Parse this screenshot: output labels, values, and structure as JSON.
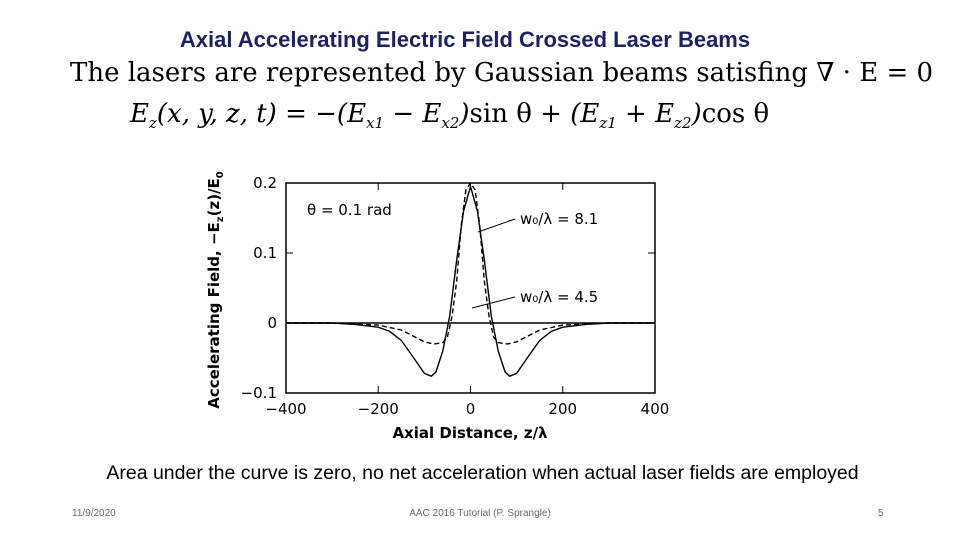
{
  "slide": {
    "title": "Axial Accelerating Electric Field Crossed Laser Beams",
    "intro_text": "The lasers are represented by Gaussian beams satisfing",
    "intro_math": "∇ · E = 0",
    "formula": {
      "lhs": "E",
      "lhs_sub": "z",
      "lhs_args": "(x, y, z, t)",
      "equals": "=",
      "t1_open": "−(E",
      "t1_sub1": "x1",
      "t1_minus": "− E",
      "t1_sub2": "x2",
      "t1_close": ")",
      "t1_fn": "sin θ",
      "plus": "+",
      "t2_open": "(E",
      "t2_sub1": "z1",
      "t2_plus": "+ E",
      "t2_sub2": "z2",
      "t2_close": ")",
      "t2_fn": "cos θ"
    },
    "caption": "Area under the curve is zero, no net acceleration when actual laser fields are employed",
    "footer": {
      "date": "11/9/2020",
      "center": "AAC 2016 Tutorial (P. Sprangle)",
      "page": "5"
    }
  },
  "chart_data": {
    "type": "line",
    "xlabel": "Axial Distance, z/λ",
    "ylabel": "Accelerating Field, −E_z(z)/E_0",
    "ylabel_main": "Accelerating Field, −E",
    "ylabel_sub": "z",
    "ylabel_end": "(z)/E",
    "ylabel_sub0": "0",
    "xlim": [
      -400,
      400
    ],
    "ylim": [
      -0.1,
      0.2
    ],
    "x_ticks": [
      "−400",
      "−200",
      "0",
      "200",
      "400"
    ],
    "y_ticks": [
      "0.2",
      "0.1",
      "0",
      "−0.1"
    ],
    "annotation": "θ = 0.1 rad",
    "series": [
      {
        "name": "w₀/λ = 8.1",
        "style": "solid",
        "x": [
          -400,
          -300,
          -250,
          -200,
          -175,
          -150,
          -125,
          -100,
          -85,
          -75,
          -60,
          -45,
          -30,
          -15,
          0,
          15,
          30,
          45,
          60,
          75,
          85,
          100,
          125,
          150,
          175,
          200,
          250,
          300,
          400
        ],
        "y": [
          0,
          0,
          -0.002,
          -0.006,
          -0.012,
          -0.025,
          -0.048,
          -0.072,
          -0.076,
          -0.07,
          -0.04,
          0.01,
          0.09,
          0.16,
          0.195,
          0.16,
          0.09,
          0.01,
          -0.04,
          -0.07,
          -0.076,
          -0.072,
          -0.048,
          -0.025,
          -0.012,
          -0.006,
          -0.002,
          0,
          0
        ]
      },
      {
        "name": "w₀/λ = 4.5",
        "style": "dashed",
        "x": [
          -400,
          -300,
          -200,
          -150,
          -120,
          -100,
          -80,
          -60,
          -50,
          -40,
          -30,
          -20,
          -10,
          0,
          10,
          20,
          30,
          40,
          50,
          60,
          80,
          100,
          120,
          150,
          200,
          300,
          400
        ],
        "y": [
          0,
          0,
          -0.003,
          -0.01,
          -0.02,
          -0.027,
          -0.03,
          -0.028,
          -0.02,
          0.01,
          0.06,
          0.14,
          0.19,
          0.2,
          0.19,
          0.14,
          0.06,
          0.01,
          -0.02,
          -0.028,
          -0.03,
          -0.027,
          -0.02,
          -0.01,
          -0.003,
          0,
          0
        ]
      }
    ]
  }
}
